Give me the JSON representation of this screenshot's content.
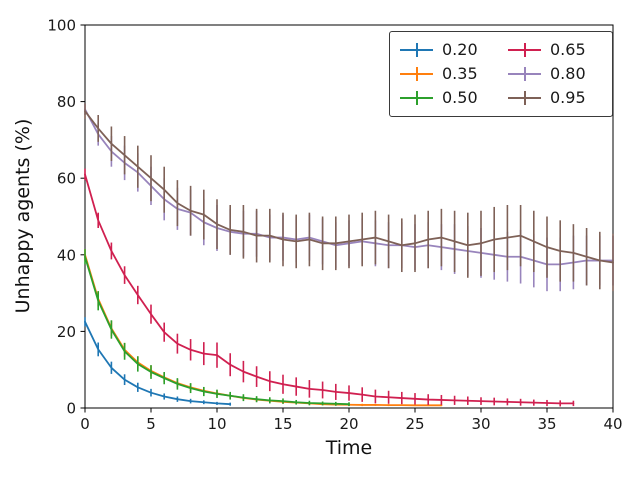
{
  "figure": {
    "background": "#ffffff",
    "text_color": "#1a1a1a",
    "axis_color": "#000000"
  },
  "chart_data": {
    "type": "line",
    "title": "",
    "xlabel": "Time",
    "ylabel": "Unhappy agents (%)",
    "xlim": [
      0,
      40
    ],
    "ylim": [
      0,
      100
    ],
    "xticks": [
      0,
      5,
      10,
      15,
      20,
      25,
      30,
      35,
      40
    ],
    "yticks": [
      0,
      20,
      40,
      60,
      80,
      100
    ],
    "grid": false,
    "error_bars": true,
    "legend": {
      "position": "upper right",
      "columns": 2,
      "order": "column-major"
    },
    "series": [
      {
        "name": "0.20",
        "color": "#1f77b4",
        "x": [
          0,
          1,
          2,
          3,
          4,
          5,
          6,
          7,
          8,
          9,
          10,
          11
        ],
        "y": [
          22.5,
          15.3,
          10.5,
          7.4,
          5.4,
          4.0,
          3.0,
          2.3,
          1.8,
          1.5,
          1.2,
          1.0
        ],
        "yerr": [
          1.2,
          1.8,
          1.6,
          1.4,
          1.2,
          1.0,
          0.8,
          0.7,
          0.6,
          0.5,
          0.4,
          0.4
        ]
      },
      {
        "name": "0.35",
        "color": "#ff7f0e",
        "x": [
          0,
          1,
          2,
          3,
          4,
          5,
          6,
          7,
          8,
          9,
          10,
          11,
          12,
          13,
          14,
          15,
          16,
          17,
          18,
          19,
          20,
          21,
          22,
          23,
          24,
          25,
          26,
          27
        ],
        "y": [
          40.0,
          28.5,
          20.8,
          15.2,
          11.9,
          9.7,
          8.0,
          6.5,
          5.4,
          4.5,
          3.8,
          3.2,
          2.6,
          2.2,
          1.9,
          1.6,
          1.4,
          1.2,
          1.0,
          0.9,
          0.85,
          0.8,
          0.8,
          0.75,
          0.75,
          0.7,
          0.7,
          0.7
        ],
        "yerr": [
          1.5,
          2.0,
          2.0,
          1.8,
          1.6,
          1.4,
          1.2,
          1.1,
          1.0,
          0.9,
          0.8,
          0.7,
          0.6,
          0.6,
          0.5,
          0.5,
          0.4,
          0.4,
          0.3,
          0.3,
          0.3,
          0.3,
          0.25,
          0.25,
          0.2,
          0.2,
          0.2,
          0.2
        ]
      },
      {
        "name": "0.50",
        "color": "#2ca02c",
        "x": [
          0,
          1,
          2,
          3,
          4,
          5,
          6,
          7,
          8,
          9,
          10,
          11,
          12,
          13,
          14,
          15,
          16,
          17,
          18,
          19,
          20
        ],
        "y": [
          39.5,
          28.0,
          20.5,
          14.8,
          11.5,
          9.4,
          7.8,
          6.3,
          5.2,
          4.3,
          3.7,
          3.2,
          2.7,
          2.3,
          2.0,
          1.8,
          1.5,
          1.3,
          1.2,
          1.1,
          1.0
        ],
        "yerr": [
          2.0,
          2.5,
          2.4,
          2.2,
          2.0,
          1.8,
          1.6,
          1.5,
          1.3,
          1.2,
          1.1,
          1.0,
          0.9,
          0.8,
          0.8,
          0.7,
          0.6,
          0.6,
          0.5,
          0.5,
          0.5
        ]
      },
      {
        "name": "0.65",
        "color": "#d02050",
        "x": [
          0,
          1,
          2,
          3,
          4,
          5,
          6,
          7,
          8,
          9,
          10,
          11,
          12,
          13,
          14,
          15,
          16,
          17,
          18,
          19,
          20,
          21,
          22,
          23,
          24,
          25,
          26,
          27,
          28,
          29,
          30,
          31,
          32,
          33,
          34,
          35,
          36,
          37
        ],
        "y": [
          61.0,
          49.0,
          41.0,
          34.7,
          29.5,
          24.5,
          19.8,
          16.8,
          15.2,
          14.2,
          13.8,
          11.3,
          9.5,
          8.2,
          7.0,
          6.2,
          5.6,
          5.0,
          4.7,
          4.2,
          3.9,
          3.5,
          3.0,
          2.8,
          2.6,
          2.4,
          2.2,
          2.1,
          2.0,
          1.9,
          1.8,
          1.7,
          1.6,
          1.5,
          1.4,
          1.3,
          1.2,
          1.2
        ],
        "yerr": [
          1.5,
          2.0,
          2.2,
          2.3,
          2.4,
          2.5,
          2.5,
          2.6,
          2.8,
          3.0,
          3.3,
          3.0,
          2.8,
          2.7,
          2.6,
          2.5,
          2.4,
          2.3,
          2.2,
          2.1,
          2.0,
          1.9,
          1.8,
          1.7,
          1.6,
          1.5,
          1.4,
          1.3,
          1.2,
          1.1,
          1.0,
          1.0,
          0.9,
          0.9,
          0.8,
          0.8,
          0.8,
          0.7
        ]
      },
      {
        "name": "0.80",
        "color": "#9884bc",
        "x": [
          0,
          1,
          2,
          3,
          4,
          5,
          6,
          7,
          8,
          9,
          10,
          11,
          12,
          13,
          14,
          15,
          16,
          17,
          18,
          19,
          20,
          21,
          22,
          23,
          24,
          25,
          26,
          27,
          28,
          29,
          30,
          31,
          32,
          33,
          34,
          35,
          36,
          37,
          38,
          39,
          40
        ],
        "y": [
          78.0,
          71.5,
          67.0,
          64.0,
          61.5,
          58.0,
          54.5,
          52.0,
          51.0,
          48.5,
          47.0,
          46.0,
          45.5,
          45.5,
          44.5,
          44.5,
          44.0,
          44.5,
          43.5,
          42.5,
          43.0,
          43.5,
          43.0,
          42.5,
          42.5,
          42.0,
          42.5,
          42.0,
          41.5,
          41.0,
          40.5,
          40.0,
          39.5,
          39.5,
          38.5,
          37.5,
          37.5,
          38.0,
          38.5,
          38.5,
          38.5
        ],
        "yerr": [
          1.5,
          3.0,
          4.0,
          4.5,
          5.0,
          5.0,
          5.5,
          5.5,
          6.0,
          6.0,
          6.0,
          6.0,
          6.0,
          6.0,
          6.0,
          6.0,
          6.0,
          6.0,
          6.0,
          6.0,
          6.0,
          6.0,
          6.0,
          6.0,
          6.0,
          6.0,
          6.0,
          6.0,
          6.5,
          6.5,
          6.5,
          6.5,
          6.5,
          7.0,
          7.0,
          7.0,
          7.0,
          7.0,
          6.5,
          6.5,
          6.5
        ]
      },
      {
        "name": "0.95",
        "color": "#7e6157",
        "x": [
          0,
          1,
          2,
          3,
          4,
          5,
          6,
          7,
          8,
          9,
          10,
          11,
          12,
          13,
          14,
          15,
          16,
          17,
          18,
          19,
          20,
          21,
          22,
          23,
          24,
          25,
          26,
          27,
          28,
          29,
          30,
          31,
          32,
          33,
          34,
          35,
          36,
          37,
          38,
          39,
          40
        ],
        "y": [
          77.5,
          73.0,
          69.0,
          66.0,
          63.0,
          60.0,
          57.0,
          53.5,
          51.5,
          50.5,
          48.0,
          46.5,
          46.0,
          45.0,
          45.0,
          44.0,
          43.5,
          44.0,
          43.0,
          43.0,
          43.5,
          44.0,
          44.5,
          43.5,
          42.5,
          43.0,
          44.0,
          44.5,
          43.5,
          42.5,
          43.0,
          44.0,
          44.5,
          45.0,
          43.5,
          42.0,
          41.0,
          40.5,
          39.5,
          38.5,
          38.0
        ],
        "yerr": [
          2.0,
          3.5,
          4.5,
          5.0,
          5.5,
          6.0,
          6.0,
          6.0,
          6.5,
          6.5,
          6.5,
          6.5,
          7.0,
          7.0,
          7.0,
          7.0,
          7.0,
          7.0,
          7.0,
          7.0,
          7.0,
          7.0,
          7.0,
          7.0,
          7.0,
          7.5,
          7.5,
          7.5,
          8.0,
          8.5,
          8.5,
          8.5,
          8.5,
          8.0,
          8.0,
          8.0,
          8.0,
          7.5,
          7.5,
          7.5,
          7.5
        ]
      }
    ]
  }
}
